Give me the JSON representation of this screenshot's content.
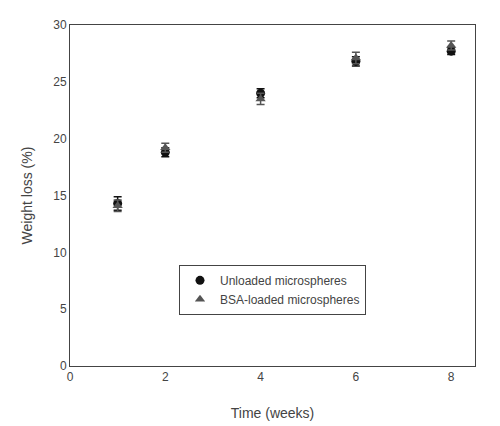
{
  "chart_data": {
    "type": "scatter",
    "x": [
      1,
      2,
      4,
      6,
      8
    ],
    "series": [
      {
        "name": "Unloaded microspheres",
        "color": "#111111",
        "marker": "circle",
        "values": [
          14.3,
          18.8,
          24.0,
          26.8,
          27.7
        ],
        "errors": [
          0.6,
          0.4,
          0.4,
          0.4,
          0.3
        ]
      },
      {
        "name": "BSA-loaded microspheres",
        "color": "#555555",
        "marker": "triangle-up",
        "values": [
          14.1,
          19.2,
          23.5,
          27.1,
          28.2
        ],
        "errors": [
          0.5,
          0.4,
          0.5,
          0.5,
          0.4
        ]
      }
    ],
    "xlabel": "Time (weeks)",
    "ylabel": "Weight loss (%)",
    "xlim": [
      0,
      8.5
    ],
    "ylim": [
      0,
      30
    ],
    "xticks": [
      0,
      2,
      4,
      6,
      8
    ],
    "yticks": [
      0,
      5,
      10,
      15,
      20,
      25,
      30
    ],
    "grid": false,
    "legend": "bottom"
  }
}
